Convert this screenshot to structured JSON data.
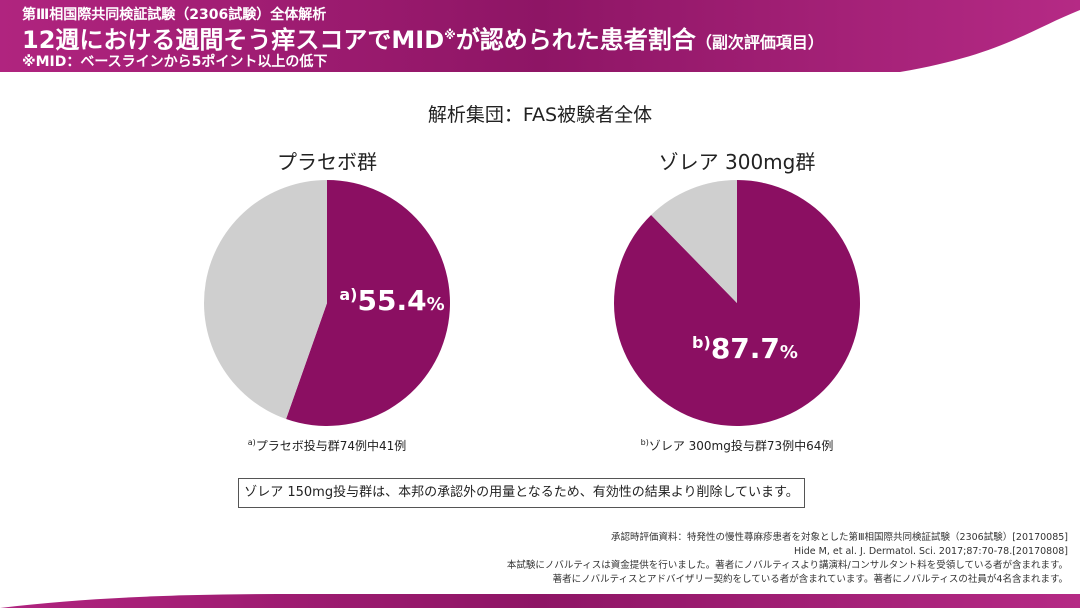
{
  "header": {
    "supertitle": "第Ⅲ相国際共同検証試験（2306試験）全体解析",
    "title": "12週における週間そう痒スコアでMID",
    "title_mark": "※",
    "title_tail": "が認められた患者割合",
    "title_paren": "（副次評価項目）",
    "note": "※MID：ベースラインから5ポイント以上の低下"
  },
  "population": "解析集団：FAS被験者全体",
  "colors": {
    "accent": "#8b0f62",
    "rest": "#cfcfcf"
  },
  "chart_data": [
    {
      "type": "pie",
      "title": "プラセボ群",
      "label_prefix": "a)",
      "value": 55.4,
      "unit": "%",
      "slices": [
        {
          "value": 55.4,
          "color": "#8b0f62"
        },
        {
          "value": 44.6,
          "color": "#cfcfcf"
        }
      ],
      "footnote_mark": "a)",
      "footnote": "プラセボ投与群74例中41例"
    },
    {
      "type": "pie",
      "title": "ゾレア 300mg群",
      "label_prefix": "b)",
      "value": 87.7,
      "unit": "%",
      "slices": [
        {
          "value": 87.7,
          "color": "#8b0f62"
        },
        {
          "value": 12.3,
          "color": "#cfcfcf"
        }
      ],
      "footnote_mark": "b)",
      "footnote": "ゾレア 300mg投与群73例中64例"
    }
  ],
  "exclusion": "ゾレア 150mg投与群は、本邦の承認外の用量となるため、有効性の結果より削除しています。",
  "refs": [
    "承認時評価資料：特発性の慢性蕁麻疹患者を対象とした第Ⅲ相国際共同検証試験（2306試験）[20170085]",
    "Hide M, et al. J. Dermatol. Sci. 2017;87:70-78.[20170808]",
    "本試験にノバルティスは資金提供を行いました。著者にノバルティスより講演料/コンサルタント料を受領している者が含まれます。",
    "著者にノバルティスとアドバイザリー契約をしている者が含まれています。著者にノバルティスの社員が4名含まれます。"
  ]
}
